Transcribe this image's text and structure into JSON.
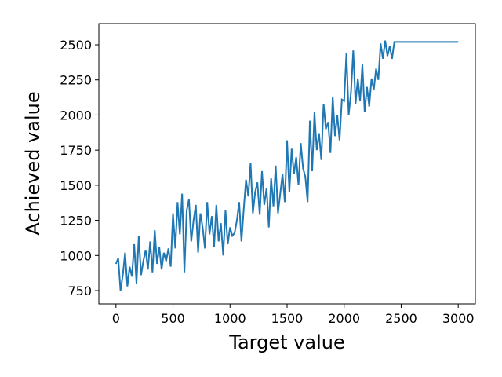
{
  "chart_data": {
    "type": "line",
    "xlabel": "Target value",
    "ylabel": "Achieved value",
    "x": [
      0,
      20,
      40,
      60,
      80,
      100,
      120,
      140,
      160,
      180,
      200,
      220,
      240,
      260,
      280,
      300,
      320,
      340,
      360,
      380,
      400,
      420,
      440,
      460,
      480,
      500,
      520,
      540,
      560,
      580,
      600,
      620,
      640,
      660,
      680,
      700,
      720,
      740,
      760,
      780,
      800,
      820,
      840,
      860,
      880,
      900,
      920,
      940,
      960,
      980,
      1000,
      1020,
      1040,
      1060,
      1080,
      1100,
      1120,
      1140,
      1160,
      1180,
      1200,
      1220,
      1240,
      1260,
      1280,
      1300,
      1320,
      1340,
      1360,
      1380,
      1400,
      1420,
      1440,
      1460,
      1480,
      1500,
      1520,
      1540,
      1560,
      1580,
      1600,
      1620,
      1640,
      1660,
      1680,
      1700,
      1720,
      1740,
      1760,
      1780,
      1800,
      1820,
      1840,
      1860,
      1880,
      1900,
      1920,
      1940,
      1960,
      1980,
      2000,
      2020,
      2040,
      2060,
      2080,
      2100,
      2120,
      2140,
      2160,
      2180,
      2200,
      2220,
      2240,
      2260,
      2280,
      2300,
      2320,
      2340,
      2360,
      2380,
      2400,
      2420,
      2440,
      3000
    ],
    "series": [
      {
        "color": "#1f77b4",
        "values": [
          940,
          980,
          750,
          860,
          1020,
          780,
          920,
          850,
          1080,
          800,
          1140,
          860,
          960,
          1040,
          900,
          1100,
          880,
          1180,
          940,
          1060,
          900,
          1020,
          960,
          1050,
          920,
          1300,
          1050,
          1380,
          1150,
          1440,
          880,
          1320,
          1400,
          1100,
          1250,
          1360,
          1020,
          1300,
          1200,
          1050,
          1380,
          1150,
          1280,
          1060,
          1360,
          1100,
          1230,
          1000,
          1320,
          1080,
          1200,
          1140,
          1160,
          1250,
          1380,
          1100,
          1330,
          1540,
          1420,
          1660,
          1300,
          1450,
          1520,
          1290,
          1600,
          1360,
          1480,
          1200,
          1550,
          1350,
          1640,
          1300,
          1440,
          1580,
          1380,
          1820,
          1450,
          1760,
          1580,
          1700,
          1500,
          1800,
          1620,
          1560,
          1380,
          1960,
          1600,
          2020,
          1750,
          1870,
          1680,
          2080,
          1900,
          1950,
          1730,
          2130,
          1850,
          2000,
          1820,
          2110,
          2100,
          2440,
          2000,
          2160,
          2460,
          2080,
          2260,
          2100,
          2360,
          2020,
          2200,
          2060,
          2260,
          2180,
          2330,
          2250,
          2510,
          2400,
          2530,
          2420,
          2490,
          2400,
          2520,
          2520
        ]
      }
    ],
    "xlim": [
      -150,
      3150
    ],
    "ylim": [
      655,
      2651
    ],
    "xticks": [
      0,
      500,
      1000,
      1500,
      2000,
      2500,
      3000
    ],
    "yticks": [
      750,
      1000,
      1250,
      1500,
      1750,
      2000,
      2250,
      2500
    ]
  }
}
